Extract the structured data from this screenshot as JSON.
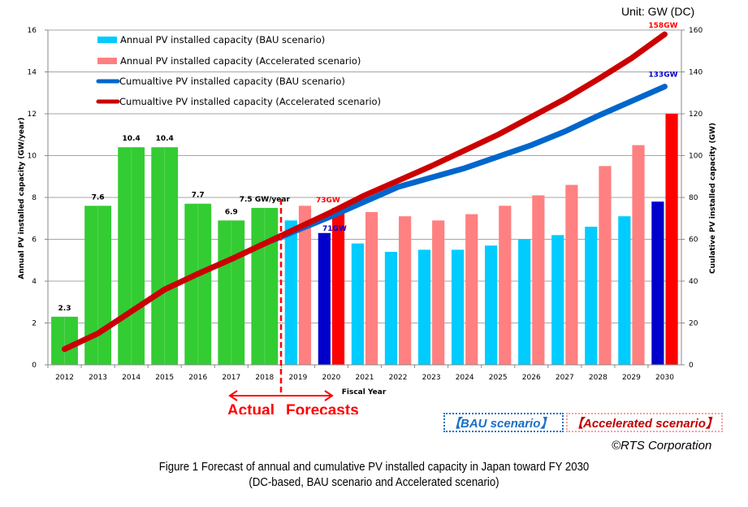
{
  "chart_data": {
    "type": "bar+line",
    "unit_label": "Unit: GW (DC)",
    "xlabel": "Fiscal Year",
    "ylabel_left": "Annual PV installed capacity (GW/year)",
    "ylabel_right": "Cuulative PV installed capacity (GW)",
    "ylim_left": [
      0,
      16
    ],
    "ylim_right": [
      0,
      160
    ],
    "yticks_left": [
      0,
      2,
      4,
      6,
      8,
      10,
      12,
      14,
      16
    ],
    "yticks_right": [
      0,
      20,
      40,
      60,
      80,
      100,
      120,
      140,
      160
    ],
    "grid": true,
    "categories": [
      "2012",
      "2013",
      "2014",
      "2015",
      "2016",
      "2017",
      "2018",
      "2019",
      "2020",
      "2021",
      "2022",
      "2023",
      "2024",
      "2025",
      "2026",
      "2027",
      "2028",
      "2029",
      "2030"
    ],
    "actual_annual": {
      "name": "Actual annual PV installed capacity",
      "color": "#33cc33",
      "values": [
        2.3,
        7.6,
        10.4,
        10.4,
        7.7,
        6.9,
        7.5
      ],
      "labels": [
        "2.3",
        "7.6",
        "10.4",
        "10.4",
        "7.7",
        "6.9",
        "7.5 GW/year"
      ]
    },
    "series": [
      {
        "name": "Annual PV installed capacity (BAU scenario)",
        "type": "bar",
        "axis": "left",
        "color": "#00ccff",
        "highlight_color": "#0000cc",
        "x": [
          "2019",
          "2020",
          "2021",
          "2022",
          "2023",
          "2024",
          "2025",
          "2026",
          "2027",
          "2028",
          "2029",
          "2030"
        ],
        "values": [
          6.9,
          6.3,
          5.8,
          5.4,
          5.5,
          5.5,
          5.7,
          6.0,
          6.2,
          6.6,
          7.1,
          7.8
        ]
      },
      {
        "name": "Annual PV installed capacity (Accelerated scenario)",
        "type": "bar",
        "axis": "left",
        "color": "#ff8080",
        "highlight_color": "#ff0000",
        "x": [
          "2019",
          "2020",
          "2021",
          "2022",
          "2023",
          "2024",
          "2025",
          "2026",
          "2027",
          "2028",
          "2029",
          "2030"
        ],
        "values": [
          7.6,
          7.5,
          7.3,
          7.1,
          6.9,
          7.2,
          7.6,
          8.1,
          8.6,
          9.5,
          10.5,
          12.0
        ]
      },
      {
        "name": "Cumualtive PV installed capacity (BAU scenario)",
        "type": "line",
        "axis": "right",
        "color": "#0066cc",
        "x": [
          "2012",
          "2013",
          "2014",
          "2015",
          "2016",
          "2017",
          "2018",
          "2019",
          "2020",
          "2021",
          "2022",
          "2023",
          "2024",
          "2025",
          "2026",
          "2027",
          "2028",
          "2029",
          "2030"
        ],
        "values": [
          7.5,
          15,
          25.5,
          36,
          43.5,
          50.5,
          58,
          64.5,
          71,
          78,
          85,
          89.5,
          94,
          99.5,
          105,
          111.5,
          119,
          126,
          133
        ]
      },
      {
        "name": "Cumualtive PV installed capacity (Accelerated scenario)",
        "type": "line",
        "axis": "right",
        "color": "#cc0000",
        "x": [
          "2012",
          "2013",
          "2014",
          "2015",
          "2016",
          "2017",
          "2018",
          "2019",
          "2020",
          "2021",
          "2022",
          "2023",
          "2024",
          "2025",
          "2026",
          "2027",
          "2028",
          "2029",
          "2030"
        ],
        "values": [
          7.5,
          15,
          25.5,
          36,
          43.5,
          50.5,
          58,
          65.5,
          73,
          81,
          88,
          95,
          102.5,
          110,
          118.5,
          127,
          136.5,
          146.5,
          158
        ]
      }
    ],
    "annotations": [
      {
        "text": "73GW",
        "year": "2020",
        "color": "#ff0000"
      },
      {
        "text": "71GW",
        "year": "2020",
        "color": "#0000cc"
      },
      {
        "text": "158GW",
        "year": "2030",
        "color": "#ff0000"
      },
      {
        "text": "133GW",
        "year": "2030",
        "color": "#0000cc"
      }
    ],
    "divider": {
      "between": [
        "2018",
        "2019"
      ],
      "left_label": "Actual",
      "right_label": "Forecasts"
    },
    "legend_position": "top-left"
  },
  "scenario_tags": {
    "bau": "【BAU scenario】",
    "accelerated": "【Accelerated scenario】"
  },
  "copyright": "©RTS Corporation",
  "caption": {
    "line1": "Figure 1    Forecast of annual and cumulative PV installed capacity in Japan toward FY 2030",
    "line2": "(DC-based, BAU scenario and Accelerated scenario)"
  }
}
